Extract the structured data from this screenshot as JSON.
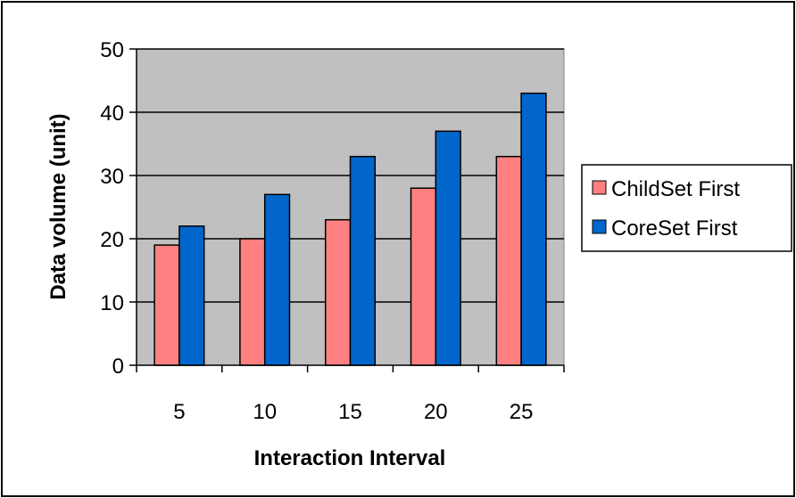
{
  "chart_data": {
    "type": "bar",
    "categories": [
      "5",
      "10",
      "15",
      "20",
      "25"
    ],
    "series": [
      {
        "name": "ChildSet First",
        "values": [
          19,
          20,
          23,
          28,
          33
        ],
        "color": "#ff8080"
      },
      {
        "name": "CoreSet First",
        "values": [
          22,
          27,
          33,
          37,
          43
        ],
        "color": "#0066cc"
      }
    ],
    "xlabel": "Interaction Interval",
    "ylabel": "Data volume (unit)",
    "ylim": [
      0,
      50
    ],
    "yticks": [
      0,
      10,
      20,
      30,
      40,
      50
    ],
    "grid": true,
    "legend": "right",
    "plot_background": "#c0c0c0"
  }
}
